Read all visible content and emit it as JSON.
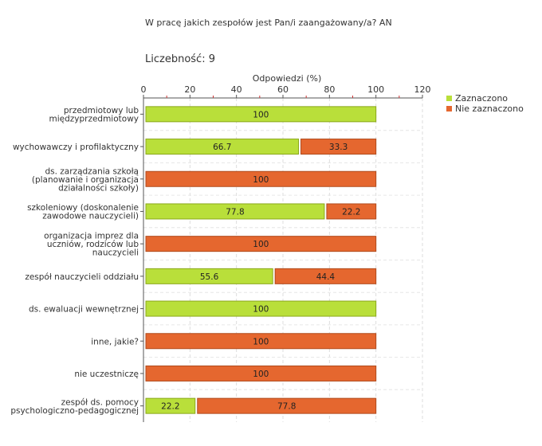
{
  "title": "W pracę jakich zespołów jest Pan/i zaangażowany/a? AN",
  "count_label": "Liczebność: 9",
  "colors": {
    "selected": "#b9df3a",
    "not_selected": "#e5672f",
    "selected_border": "#8aa81a",
    "not_selected_border": "#b04a1c"
  },
  "chart_data": {
    "type": "bar",
    "orientation": "horizontal",
    "stacked": true,
    "xlabel": "Odpowiedzi (%)",
    "xlim": [
      0,
      120
    ],
    "xticks": [
      0,
      20,
      40,
      60,
      80,
      100,
      120
    ],
    "categories": [
      [
        "przedmiotowy lub",
        "międzyprzedmiotowy"
      ],
      [
        "wychowawczy i profilaktyczny"
      ],
      [
        "ds. zarządzania szkołą",
        "(planowanie i organizacja",
        "działalności szkoły)"
      ],
      [
        "szkoleniowy (doskonalenie",
        "zawodowe nauczycieli)"
      ],
      [
        "organizacja imprez dla",
        "uczniów, rodziców lub",
        "nauczycieli"
      ],
      [
        "zespół nauczycieli oddziału"
      ],
      [
        "ds. ewaluacji wewnętrznej"
      ],
      [
        "inne, jakie?"
      ],
      [
        "nie uczestniczę"
      ],
      [
        "zespół ds. pomocy",
        "psychologiczno-pedagogicznej"
      ]
    ],
    "series": [
      {
        "name": "Zaznaczono",
        "values": [
          100,
          66.7,
          0,
          77.8,
          0,
          55.6,
          100,
          0,
          0,
          22.2
        ],
        "labels": [
          "100",
          "66.7",
          "",
          "77.8",
          "",
          "55.6",
          "100",
          "",
          "",
          "22.2"
        ]
      },
      {
        "name": "Nie zaznaczono",
        "values": [
          0,
          33.3,
          100,
          22.2,
          100,
          44.4,
          0,
          100,
          100,
          77.8
        ],
        "labels": [
          "",
          "33.3",
          "100",
          "22.2",
          "100",
          "44.4",
          "",
          "100",
          "100",
          "77.8"
        ]
      }
    ],
    "legend_position": "top-right"
  }
}
